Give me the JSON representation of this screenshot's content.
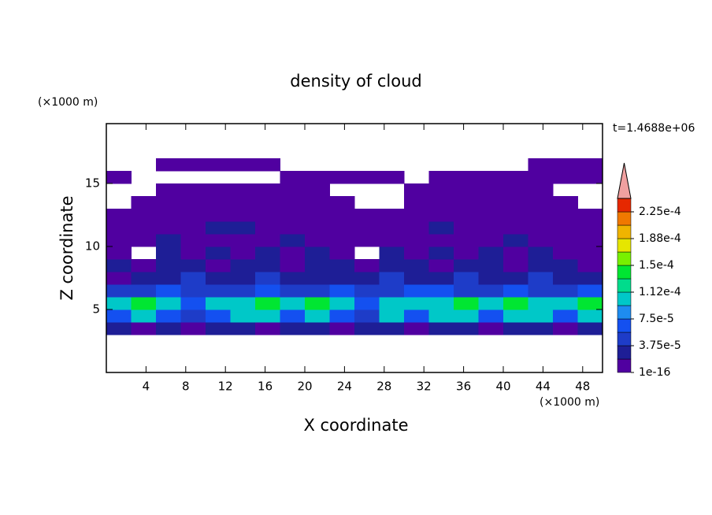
{
  "chart_data": {
    "type": "contour",
    "title": "density of cloud",
    "x_label": "X coordinate",
    "y_label": "Z coordinate",
    "x_unit": "(×1000 m)",
    "y_unit": "(×1000 m)",
    "time_label": "t=1.4688e+06",
    "xlim": [
      0,
      50
    ],
    "ylim": [
      0,
      19.75
    ],
    "xticks": [
      4,
      8,
      12,
      16,
      20,
      24,
      28,
      32,
      36,
      40,
      44,
      48
    ],
    "yticks": [
      5,
      10,
      15
    ],
    "x": [
      1.25,
      3.75,
      6.25,
      8.75,
      11.25,
      13.75,
      16.25,
      18.75,
      21.25,
      23.75,
      26.25,
      28.75,
      31.25,
      33.75,
      36.25,
      38.75,
      41.25,
      43.75,
      46.25,
      48.75
    ],
    "z": [
      3.5,
      4.5,
      5.5,
      6.5,
      7.5,
      8.5,
      9.5,
      10.5,
      11.5,
      12.5,
      13.5,
      14.5,
      15.5,
      16.5
    ],
    "values": [
      [
        2.5e-05,
        1e-05,
        2.5e-05,
        1e-05,
        2.5e-05,
        2.5e-05,
        1e-05,
        2.5e-05,
        2.5e-05,
        1e-05,
        2.5e-05,
        2.5e-05,
        1e-05,
        2.5e-05,
        2.5e-05,
        1e-05,
        2.5e-05,
        2.5e-05,
        1e-05,
        2.5e-05
      ],
      [
        6.5e-05,
        0.0001,
        6.5e-05,
        4.5e-05,
        6.5e-05,
        0.0001,
        0.0001,
        6.5e-05,
        0.0001,
        6.5e-05,
        4.5e-05,
        0.0001,
        6.5e-05,
        0.0001,
        0.0001,
        6.5e-05,
        0.0001,
        0.0001,
        6.5e-05,
        0.0001
      ],
      [
        0.0001,
        0.00014,
        0.0001,
        6.5e-05,
        0.0001,
        0.0001,
        0.00014,
        0.0001,
        0.00014,
        0.0001,
        6.5e-05,
        0.0001,
        0.0001,
        0.0001,
        0.00014,
        0.0001,
        0.00014,
        0.0001,
        0.0001,
        0.00014
      ],
      [
        4.5e-05,
        4.5e-05,
        6.5e-05,
        4.5e-05,
        4.5e-05,
        4.5e-05,
        6.5e-05,
        4.5e-05,
        4.5e-05,
        6.5e-05,
        4.5e-05,
        4.5e-05,
        6.5e-05,
        6.5e-05,
        4.5e-05,
        4.5e-05,
        6.5e-05,
        4.5e-05,
        4.5e-05,
        6.5e-05
      ],
      [
        1e-05,
        2.5e-05,
        2.5e-05,
        4.5e-05,
        2.5e-05,
        2.5e-05,
        4.5e-05,
        2.5e-05,
        2.5e-05,
        2.5e-05,
        2.5e-05,
        4.5e-05,
        2.5e-05,
        2.5e-05,
        4.5e-05,
        2.5e-05,
        2.5e-05,
        4.5e-05,
        2.5e-05,
        2.5e-05
      ],
      [
        2.5e-05,
        1e-05,
        2.5e-05,
        2.5e-05,
        1e-05,
        2.5e-05,
        2.5e-05,
        1e-05,
        2.5e-05,
        2.5e-05,
        1e-05,
        2.5e-05,
        2.5e-05,
        1e-05,
        2.5e-05,
        2.5e-05,
        1e-05,
        2.5e-05,
        2.5e-05,
        1e-05
      ],
      [
        1e-05,
        null,
        2.5e-05,
        1e-05,
        2.5e-05,
        1e-05,
        2.5e-05,
        1e-05,
        2.5e-05,
        1e-05,
        null,
        2.5e-05,
        1e-05,
        2.5e-05,
        1e-05,
        2.5e-05,
        1e-05,
        2.5e-05,
        1e-05,
        1e-05
      ],
      [
        1e-05,
        1e-05,
        2.5e-05,
        1e-05,
        1e-05,
        1e-05,
        1e-05,
        2.5e-05,
        1e-05,
        1e-05,
        1e-05,
        1e-05,
        1e-05,
        1e-05,
        1e-05,
        1e-05,
        2.5e-05,
        1e-05,
        1e-05,
        1e-05
      ],
      [
        1e-05,
        1e-05,
        1e-05,
        1e-05,
        2.5e-05,
        2.5e-05,
        1e-05,
        1e-05,
        1e-05,
        1e-05,
        1e-05,
        1e-05,
        1e-05,
        2.5e-05,
        1e-05,
        1e-05,
        1e-05,
        1e-05,
        1e-05,
        1e-05
      ],
      [
        1e-05,
        1e-05,
        1e-05,
        1e-05,
        1e-05,
        1e-05,
        1e-05,
        1e-05,
        1e-05,
        1e-05,
        1e-05,
        1e-05,
        1e-05,
        1e-05,
        1e-05,
        1e-05,
        1e-05,
        1e-05,
        1e-05,
        1e-05
      ],
      [
        null,
        1e-05,
        1e-05,
        1e-05,
        1e-05,
        1e-05,
        1e-05,
        1e-05,
        1e-05,
        1e-05,
        null,
        null,
        1e-05,
        1e-05,
        1e-05,
        1e-05,
        1e-05,
        1e-05,
        1e-05,
        null
      ],
      [
        null,
        null,
        1e-05,
        1e-05,
        1e-05,
        1e-05,
        1e-05,
        1e-05,
        1e-05,
        null,
        null,
        null,
        1e-05,
        1e-05,
        1e-05,
        1e-05,
        1e-05,
        1e-05,
        null,
        null
      ],
      [
        1e-05,
        null,
        null,
        null,
        null,
        null,
        null,
        1e-05,
        1e-05,
        1e-05,
        1e-05,
        1e-05,
        null,
        1e-05,
        1e-05,
        1e-05,
        1e-05,
        1e-05,
        1e-05,
        1e-05
      ],
      [
        null,
        null,
        1e-05,
        1e-05,
        1e-05,
        1e-05,
        1e-05,
        null,
        null,
        null,
        null,
        null,
        null,
        null,
        null,
        null,
        null,
        1e-05,
        1e-05,
        1e-05
      ]
    ],
    "colorbar": {
      "levels": [
        1e-16,
        1.875e-05,
        3.75e-05,
        5.625e-05,
        7.5e-05,
        9.375e-05,
        0.0001125,
        0.00013125,
        0.00015,
        0.00016875,
        0.0001875,
        0.00020625,
        0.000225,
        0.00024375
      ],
      "colors": [
        "#5000a0",
        "#1e1e96",
        "#1e3cc8",
        "#1450f0",
        "#1e8cf0",
        "#00c8c8",
        "#00dc8c",
        "#00e632",
        "#78f000",
        "#e6e600",
        "#f0b400",
        "#f07800",
        "#e62800"
      ],
      "extend_color": "#f0a0a0",
      "ticks": [
        1e-16,
        {
          "value": 3.75e-05,
          "label": "3.75e-5"
        },
        {
          "value": 7.5e-05,
          "label": "7.5e-5"
        },
        {
          "value": 0.0001125,
          "label": "1.12e-4"
        },
        {
          "value": 0.00015,
          "label": "1.5e-4"
        },
        {
          "value": 0.0001875,
          "label": "1.88e-4"
        },
        {
          "value": 0.000225,
          "label": "2.25e-4"
        }
      ]
    }
  }
}
